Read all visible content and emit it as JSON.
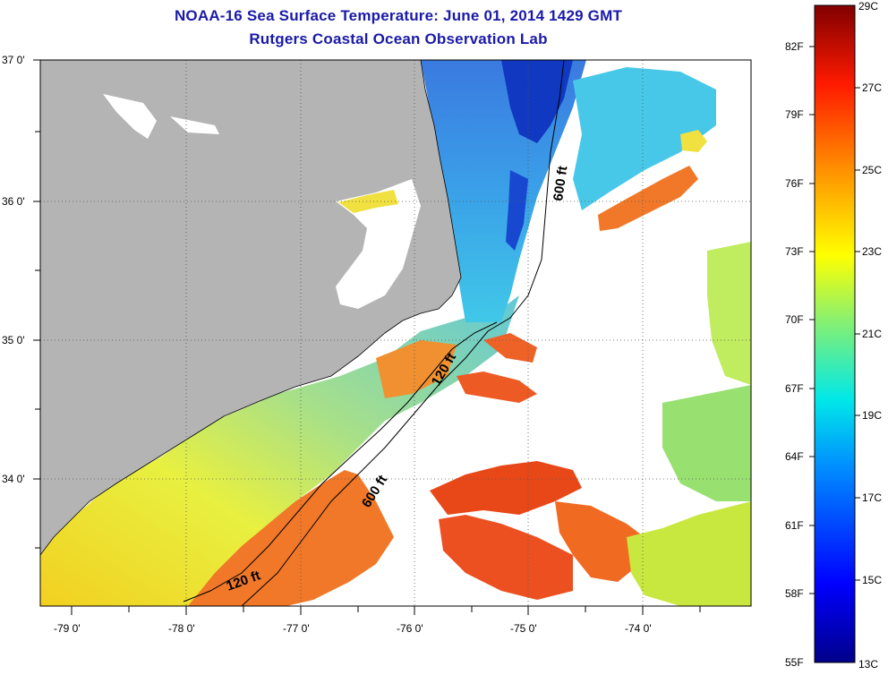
{
  "title": "NOAA-16 Sea Surface Temperature:  June 01, 2014 1429 GMT",
  "subtitle": "Rutgers Coastal Ocean Observation Lab",
  "lat_labels": [
    "37 0'",
    "36 0'",
    "35 0'",
    "34 0'"
  ],
  "lon_labels": [
    "-79 0'",
    "-78 0'",
    "-77 0'",
    "-76 0'",
    "-75 0'",
    "-74 0'"
  ],
  "contours": [
    "120 ft",
    "600 ft",
    "600 ft",
    "120 ft"
  ],
  "colorbar": {
    "fahrenheit": [
      "82F",
      "79F",
      "76F",
      "73F",
      "70F",
      "67F",
      "64F",
      "61F",
      "58F",
      "55F"
    ],
    "celsius": [
      "29C",
      "27C",
      "25C",
      "23C",
      "21C",
      "19C",
      "17C",
      "15C",
      "13C"
    ]
  },
  "colors": {
    "title": "#1a1aa8",
    "land": "#b4b4b4",
    "warm": "#e8401a",
    "cool": "#2a9ae0",
    "cold": "#0a2aa8"
  }
}
